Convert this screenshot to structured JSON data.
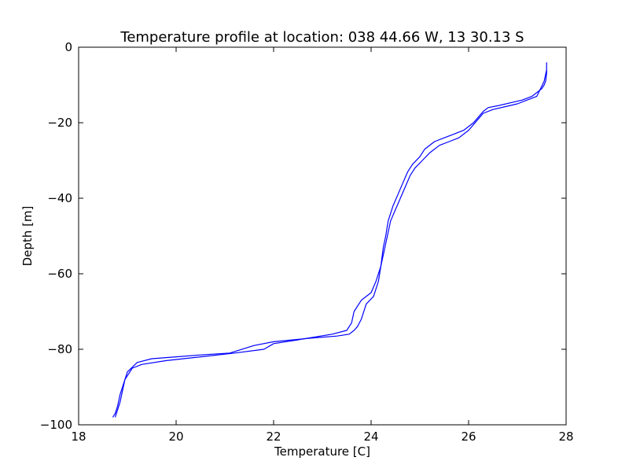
{
  "chart_data": {
    "type": "line",
    "title": "Temperature profile at location: 038 44.66 W, 13 30.13 S",
    "xlabel": "Temperature [C]",
    "ylabel": "Depth [m]",
    "xlim": [
      18,
      28
    ],
    "ylim": [
      -100,
      0
    ],
    "xticks": [
      18,
      20,
      22,
      24,
      26,
      28
    ],
    "yticks": [
      0,
      -20,
      -40,
      -60,
      -80,
      -100
    ],
    "xtick_labels": [
      "18",
      "20",
      "22",
      "24",
      "26",
      "28"
    ],
    "ytick_labels": [
      "0",
      "−20",
      "−40",
      "−60",
      "−80",
      "−100"
    ],
    "grid": false,
    "line_color": "#0000ff",
    "series": [
      {
        "x": [
          27.6,
          27.6,
          27.58,
          27.55,
          27.5,
          27.4,
          27.3,
          27.1,
          26.6,
          26.4,
          26.3,
          26.1,
          25.9,
          25.7,
          25.5,
          25.3,
          25.1,
          25.0,
          24.85,
          24.75,
          24.65,
          24.55,
          24.45,
          24.35,
          24.3,
          24.25,
          24.22,
          24.2,
          24.15,
          24.1,
          24.05,
          23.9,
          23.8,
          23.72,
          23.65,
          23.55,
          23.3,
          22.8,
          22.0,
          21.6,
          21.1,
          20.5,
          20.0,
          19.5,
          19.2,
          19.0,
          18.95,
          18.9,
          18.85,
          18.8,
          18.75
        ],
        "y": [
          -4,
          -7,
          -9,
          -10,
          -11,
          -12,
          -13,
          -14,
          -15.5,
          -16,
          -17,
          -20,
          -22,
          -23,
          -24,
          -25,
          -27,
          -29,
          -31,
          -33,
          -36,
          -39,
          -42,
          -46,
          -50,
          -53,
          -56,
          -58,
          -62,
          -64,
          -66,
          -68,
          -72,
          -74,
          -75,
          -76,
          -76.5,
          -77,
          -78,
          -79,
          -81,
          -81.5,
          -82,
          -82.5,
          -83.5,
          -86,
          -88,
          -91,
          -94,
          -96,
          -98
        ]
      },
      {
        "x": [
          27.6,
          27.55,
          27.4,
          27.0,
          26.5,
          26.3,
          26.2,
          26.0,
          25.8,
          25.6,
          25.4,
          25.2,
          25.05,
          24.9,
          24.8,
          24.7,
          24.6,
          24.5,
          24.4,
          24.35,
          24.3,
          24.25,
          24.2,
          24.1,
          24.0,
          23.8,
          23.65,
          23.6,
          23.5,
          23.2,
          22.5,
          22.0,
          21.8,
          21.2,
          20.5,
          19.8,
          19.3,
          19.1,
          18.95,
          18.85,
          18.8,
          18.75,
          18.7
        ],
        "y": [
          -6,
          -9,
          -13,
          -15,
          -16.5,
          -17.5,
          -19,
          -22,
          -24,
          -25,
          -26,
          -28,
          -30,
          -32,
          -34,
          -37,
          -40,
          -43,
          -46,
          -49,
          -52,
          -55,
          -58,
          -62,
          -65,
          -67,
          -70,
          -73,
          -75,
          -76,
          -77.5,
          -78.5,
          -80,
          -81,
          -82,
          -83,
          -84,
          -85,
          -88,
          -92,
          -95,
          -97,
          -98
        ]
      }
    ]
  }
}
